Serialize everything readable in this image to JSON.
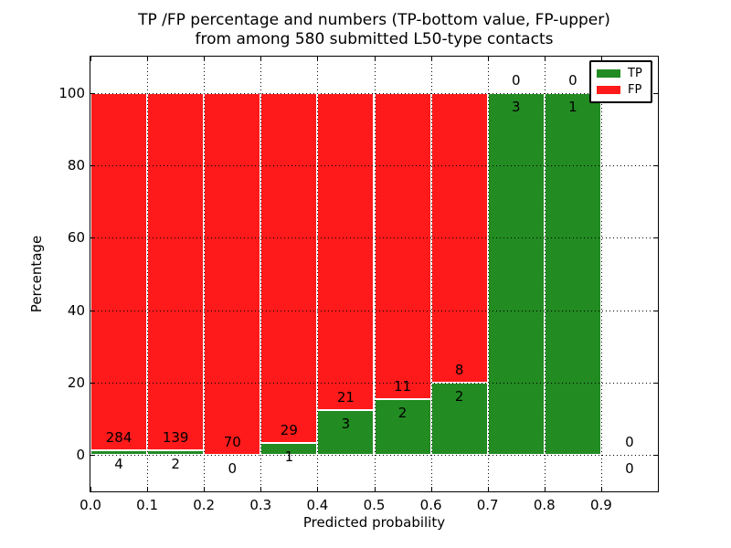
{
  "header": {
    "title_line1": "TP /FP percentage and numbers (TP-bottom value, FP-upper)",
    "title_line2": "from among 580 submitted L50-type contacts"
  },
  "chart_data": {
    "type": "bar",
    "stacked": true,
    "title": "TP /FP percentage and numbers (TP-bottom value, FP-upper) from among 580 submitted L50-type contacts",
    "xlabel": "Predicted probability",
    "ylabel": "Percentage",
    "xlim": [
      0.0,
      1.0
    ],
    "ylim": [
      -10,
      110
    ],
    "bin_width": 0.1,
    "bin_starts": [
      0.0,
      0.1,
      0.2,
      0.3,
      0.4,
      0.5,
      0.6,
      0.7,
      0.8,
      0.9
    ],
    "xtick_values": [
      0.0,
      0.1,
      0.2,
      0.3,
      0.4,
      0.5,
      0.6,
      0.7,
      0.8,
      0.9
    ],
    "xtick_labels": [
      "0.0",
      "0.1",
      "0.2",
      "0.3",
      "0.4",
      "0.5",
      "0.6",
      "0.7",
      "0.8",
      "0.9"
    ],
    "ytick_values": [
      0,
      20,
      40,
      60,
      80,
      100
    ],
    "ytick_labels": [
      "0",
      "20",
      "40",
      "60",
      "80",
      "100"
    ],
    "grid": "dotted-both-axes",
    "legend_position": "upper-right",
    "series": [
      {
        "name": "TP",
        "color": "#228b22",
        "counts": [
          4,
          2,
          0,
          1,
          3,
          2,
          2,
          3,
          1,
          0
        ]
      },
      {
        "name": "FP",
        "color": "#fe1a1a",
        "counts": [
          284,
          139,
          70,
          29,
          21,
          11,
          8,
          0,
          0,
          0
        ]
      }
    ],
    "tp_percent_per_bin": [
      1.39,
      1.42,
      0.0,
      3.33,
      12.5,
      15.38,
      20.0,
      100.0,
      100.0,
      null
    ],
    "total_contacts": 580
  }
}
